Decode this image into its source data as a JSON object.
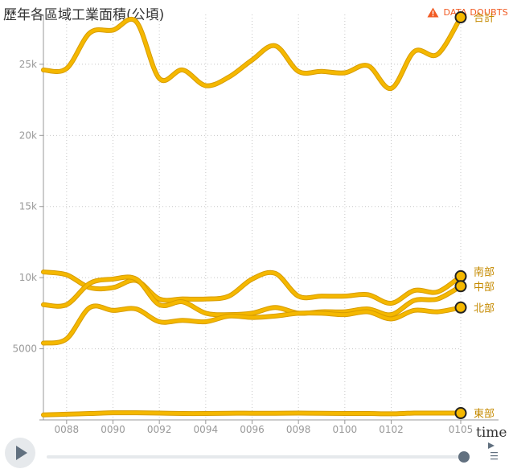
{
  "header": {
    "title": "歷年各區域工業面積(公頃)",
    "doubts_label": "DATA DOUBTS"
  },
  "controls": {
    "time_label": "time",
    "play_icon": "play-icon",
    "menu_icon": "menu-icon",
    "current_position": 1.0
  },
  "colors": {
    "line": "#f5b800",
    "line_dark": "#d79c00",
    "label": "#c58a00",
    "axis": "#999999",
    "accent": "#f15a22"
  },
  "chart_data": {
    "type": "line",
    "title": "歷年各區域工業面積(公頃)",
    "xlabel": "time",
    "ylabel": "",
    "x": [
      87,
      88,
      89,
      90,
      91,
      92,
      93,
      94,
      95,
      96,
      97,
      98,
      99,
      100,
      101,
      102,
      103,
      104,
      105
    ],
    "x_tick_labels": [
      "0088",
      "0090",
      "0092",
      "0094",
      "0096",
      "0098",
      "0100",
      "0102",
      "0105"
    ],
    "x_tick_values": [
      88,
      90,
      92,
      94,
      96,
      98,
      100,
      102,
      105
    ],
    "xlim": [
      87,
      105
    ],
    "ylim": [
      0,
      28500
    ],
    "y_ticks": [
      5000,
      10000,
      15000,
      20000,
      25000
    ],
    "y_tick_labels": [
      "5000",
      "10k",
      "15k",
      "20k",
      "25k"
    ],
    "grid": true,
    "series": [
      {
        "name": "合計",
        "values": [
          24600,
          24700,
          27200,
          27400,
          28000,
          24000,
          24600,
          23500,
          24100,
          25300,
          26300,
          24500,
          24500,
          24400,
          24900,
          23300,
          25900,
          25700,
          28300
        ]
      },
      {
        "name": "南部",
        "values": [
          10400,
          10200,
          9300,
          9300,
          9800,
          8500,
          8500,
          8500,
          8700,
          9900,
          10300,
          8700,
          8700,
          8700,
          8800,
          8200,
          9100,
          9000,
          10100
        ]
      },
      {
        "name": "中部",
        "values": [
          8100,
          8100,
          9600,
          9900,
          9900,
          8100,
          8300,
          7500,
          7400,
          7500,
          7900,
          7500,
          7600,
          7600,
          7800,
          7400,
          8400,
          8500,
          9400
        ]
      },
      {
        "name": "北部",
        "values": [
          5400,
          5700,
          7900,
          7700,
          7800,
          6900,
          7000,
          6900,
          7300,
          7200,
          7300,
          7500,
          7500,
          7400,
          7600,
          7100,
          7700,
          7600,
          7900
        ]
      },
      {
        "name": "東部",
        "values": [
          350,
          400,
          450,
          500,
          500,
          480,
          450,
          450,
          470,
          470,
          470,
          480,
          470,
          450,
          450,
          430,
          480,
          480,
          480
        ]
      }
    ]
  }
}
